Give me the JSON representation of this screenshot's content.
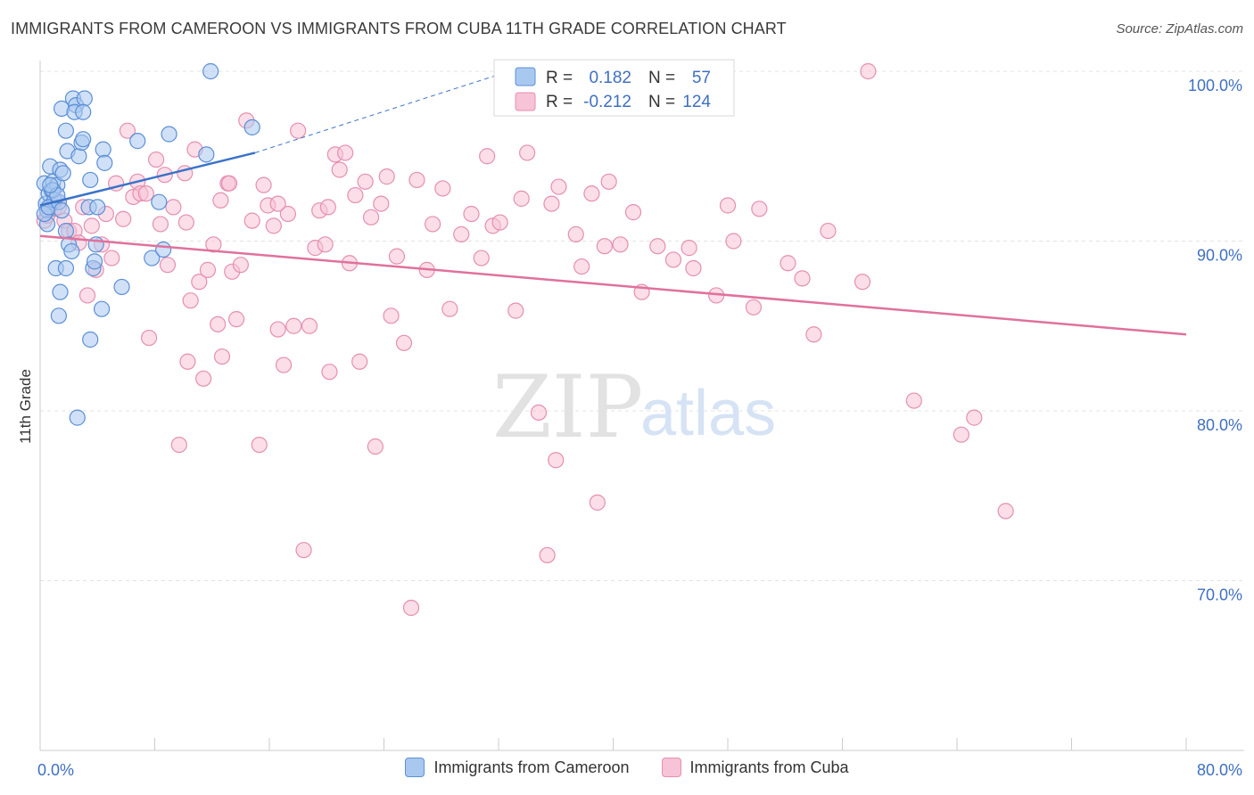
{
  "header": {
    "title": "IMMIGRANTS FROM CAMEROON VS IMMIGRANTS FROM CUBA 11TH GRADE CORRELATION CHART",
    "source": "Source: ZipAtlas.com"
  },
  "watermark": {
    "zip": "ZIP",
    "atlas": "atlas"
  },
  "colors": {
    "cameroon_fill": "#a9c8f0",
    "cameroon_stroke": "#5b8fd6",
    "cameroon_line": "#3a72c9",
    "cuba_fill": "#f7c3d6",
    "cuba_stroke": "#e58fb0",
    "cuba_line": "#e0719c",
    "tick_text": "#3f6fc2",
    "grid": "#e3e3e3"
  },
  "legend": {
    "rows": [
      {
        "r_label": "R =",
        "r_value": "0.182",
        "n_label": "N =",
        "n_value": "57"
      },
      {
        "r_label": "R =",
        "r_value": "-0.212",
        "n_label": "N =",
        "n_value": "124"
      }
    ]
  },
  "chart_data": {
    "type": "scatter",
    "title": "IMMIGRANTS FROM CAMEROON VS IMMIGRANTS FROM CUBA 11TH GRADE CORRELATION CHART",
    "ylabel": "11th Grade",
    "xlabel": "",
    "xlim": [
      0,
      80
    ],
    "ylim": [
      60,
      100
    ],
    "x_tick_labels": [
      "0.0%",
      "80.0%"
    ],
    "y_ticks": [
      70,
      80,
      90,
      100
    ],
    "y_tick_labels": [
      "70.0%",
      "80.0%",
      "90.0%",
      "100.0%"
    ],
    "grid": true,
    "legend_position": "top-center",
    "series": [
      {
        "name": "Immigrants from Cameroon",
        "R": 0.182,
        "N": 57,
        "trend": {
          "x": [
            0,
            15
          ],
          "y": [
            92.1,
            95.2
          ],
          "dashed_to": [
            32,
            99.8
          ]
        },
        "points": [
          [
            0.3,
            93.4
          ],
          [
            0.4,
            92.2
          ],
          [
            0.5,
            91.8
          ],
          [
            0.6,
            92.8
          ],
          [
            0.7,
            94.4
          ],
          [
            0.8,
            93.0
          ],
          [
            0.9,
            93.5
          ],
          [
            1.0,
            92.4
          ],
          [
            0.5,
            91.0
          ],
          [
            1.2,
            93.3
          ],
          [
            0.3,
            91.6
          ],
          [
            0.6,
            92.0
          ],
          [
            1.4,
            94.2
          ],
          [
            1.6,
            94.0
          ],
          [
            1.8,
            96.5
          ],
          [
            1.9,
            95.3
          ],
          [
            1.5,
            97.8
          ],
          [
            2.3,
            98.4
          ],
          [
            2.5,
            98.0
          ],
          [
            2.4,
            97.6
          ],
          [
            3.1,
            98.4
          ],
          [
            3.0,
            97.6
          ],
          [
            2.7,
            95.0
          ],
          [
            2.9,
            95.8
          ],
          [
            3.0,
            96.0
          ],
          [
            1.3,
            92.3
          ],
          [
            1.5,
            91.8
          ],
          [
            1.8,
            90.6
          ],
          [
            2.0,
            89.8
          ],
          [
            2.2,
            89.4
          ],
          [
            1.1,
            88.4
          ],
          [
            1.8,
            88.4
          ],
          [
            1.4,
            87.0
          ],
          [
            1.3,
            85.6
          ],
          [
            3.5,
            93.6
          ],
          [
            3.4,
            92.0
          ],
          [
            3.7,
            88.4
          ],
          [
            3.9,
            89.8
          ],
          [
            3.8,
            88.8
          ],
          [
            4.4,
            95.4
          ],
          [
            4.5,
            94.6
          ],
          [
            4.3,
            86.0
          ],
          [
            5.7,
            87.3
          ],
          [
            3.5,
            84.2
          ],
          [
            6.8,
            95.9
          ],
          [
            7.8,
            89.0
          ],
          [
            8.3,
            92.3
          ],
          [
            8.6,
            89.5
          ],
          [
            9.0,
            96.3
          ],
          [
            11.6,
            95.1
          ],
          [
            11.9,
            100.0
          ],
          [
            14.8,
            96.7
          ],
          [
            4.0,
            92.0
          ],
          [
            2.6,
            79.6
          ],
          [
            0.9,
            93.0
          ],
          [
            1.2,
            92.7
          ],
          [
            0.7,
            93.3
          ]
        ]
      },
      {
        "name": "Immigrants from Cuba",
        "R": -0.212,
        "N": 124,
        "trend": {
          "x": [
            0,
            80
          ],
          "y": [
            90.3,
            84.5
          ]
        },
        "points": [
          [
            0.3,
            91.2
          ],
          [
            0.5,
            91.5
          ],
          [
            0.8,
            92.1
          ],
          [
            1.0,
            91.9
          ],
          [
            1.3,
            92.0
          ],
          [
            1.7,
            91.2
          ],
          [
            2.0,
            90.6
          ],
          [
            2.4,
            90.6
          ],
          [
            2.7,
            89.9
          ],
          [
            3.0,
            92.0
          ],
          [
            3.3,
            86.8
          ],
          [
            3.6,
            90.9
          ],
          [
            3.9,
            88.3
          ],
          [
            4.3,
            89.8
          ],
          [
            4.6,
            91.6
          ],
          [
            5.0,
            89.0
          ],
          [
            5.3,
            93.4
          ],
          [
            5.8,
            91.3
          ],
          [
            6.1,
            96.5
          ],
          [
            6.5,
            92.6
          ],
          [
            6.8,
            93.5
          ],
          [
            7.0,
            92.8
          ],
          [
            7.4,
            92.8
          ],
          [
            7.6,
            84.3
          ],
          [
            8.1,
            94.8
          ],
          [
            8.4,
            91.0
          ],
          [
            8.7,
            93.9
          ],
          [
            8.9,
            88.6
          ],
          [
            9.3,
            92.0
          ],
          [
            9.7,
            78.0
          ],
          [
            10.1,
            94.0
          ],
          [
            10.3,
            82.9
          ],
          [
            10.5,
            86.5
          ],
          [
            10.8,
            95.4
          ],
          [
            11.1,
            87.6
          ],
          [
            11.4,
            81.9
          ],
          [
            11.7,
            88.3
          ],
          [
            12.1,
            89.8
          ],
          [
            12.4,
            85.1
          ],
          [
            12.7,
            83.2
          ],
          [
            13.1,
            93.4
          ],
          [
            13.4,
            88.2
          ],
          [
            13.7,
            85.4
          ],
          [
            14.0,
            88.6
          ],
          [
            14.4,
            97.1
          ],
          [
            14.8,
            91.2
          ],
          [
            15.3,
            78.0
          ],
          [
            15.6,
            93.3
          ],
          [
            15.9,
            92.1
          ],
          [
            16.3,
            90.9
          ],
          [
            16.6,
            84.8
          ],
          [
            17.0,
            82.7
          ],
          [
            17.3,
            91.6
          ],
          [
            17.7,
            85.0
          ],
          [
            18.0,
            96.5
          ],
          [
            18.4,
            71.8
          ],
          [
            18.8,
            85.0
          ],
          [
            19.2,
            89.6
          ],
          [
            19.5,
            91.8
          ],
          [
            19.9,
            89.8
          ],
          [
            20.2,
            82.3
          ],
          [
            20.6,
            95.1
          ],
          [
            20.9,
            94.2
          ],
          [
            21.3,
            95.2
          ],
          [
            21.6,
            88.7
          ],
          [
            22.0,
            92.7
          ],
          [
            22.3,
            82.9
          ],
          [
            22.7,
            93.5
          ],
          [
            23.1,
            91.4
          ],
          [
            23.4,
            77.9
          ],
          [
            23.8,
            92.2
          ],
          [
            24.2,
            93.8
          ],
          [
            24.5,
            85.6
          ],
          [
            24.9,
            89.1
          ],
          [
            25.4,
            84.0
          ],
          [
            25.9,
            68.4
          ],
          [
            26.3,
            93.6
          ],
          [
            27.0,
            88.3
          ],
          [
            27.4,
            91.0
          ],
          [
            28.1,
            93.1
          ],
          [
            28.6,
            86.0
          ],
          [
            29.4,
            90.4
          ],
          [
            30.1,
            91.6
          ],
          [
            30.8,
            89.0
          ],
          [
            31.2,
            95.0
          ],
          [
            31.6,
            90.9
          ],
          [
            32.1,
            91.1
          ],
          [
            33.2,
            85.9
          ],
          [
            33.6,
            92.5
          ],
          [
            34.0,
            95.2
          ],
          [
            34.8,
            79.9
          ],
          [
            35.4,
            71.5
          ],
          [
            35.7,
            92.2
          ],
          [
            36.0,
            77.1
          ],
          [
            36.2,
            93.2
          ],
          [
            37.4,
            90.4
          ],
          [
            37.8,
            88.5
          ],
          [
            38.5,
            92.8
          ],
          [
            38.9,
            74.6
          ],
          [
            39.4,
            89.7
          ],
          [
            39.7,
            93.5
          ],
          [
            40.5,
            89.8
          ],
          [
            41.4,
            91.7
          ],
          [
            42.0,
            87.0
          ],
          [
            43.1,
            89.7
          ],
          [
            44.2,
            88.9
          ],
          [
            45.3,
            89.6
          ],
          [
            45.6,
            88.4
          ],
          [
            47.2,
            86.8
          ],
          [
            48.0,
            92.1
          ],
          [
            48.4,
            90.0
          ],
          [
            49.8,
            86.1
          ],
          [
            50.2,
            91.9
          ],
          [
            52.2,
            88.7
          ],
          [
            53.2,
            87.8
          ],
          [
            54.0,
            84.5
          ],
          [
            55.0,
            90.6
          ],
          [
            57.4,
            87.6
          ],
          [
            57.8,
            100.0
          ],
          [
            61.0,
            80.6
          ],
          [
            64.3,
            78.6
          ],
          [
            65.2,
            79.6
          ],
          [
            67.4,
            74.1
          ],
          [
            10.2,
            91.1
          ],
          [
            13.2,
            93.4
          ],
          [
            16.6,
            92.2
          ],
          [
            20.1,
            92.0
          ],
          [
            12.6,
            92.4
          ]
        ]
      }
    ]
  },
  "bottom_legend": {
    "items": [
      {
        "label": "Immigrants from Cameroon"
      },
      {
        "label": "Immigrants from Cuba"
      }
    ]
  }
}
